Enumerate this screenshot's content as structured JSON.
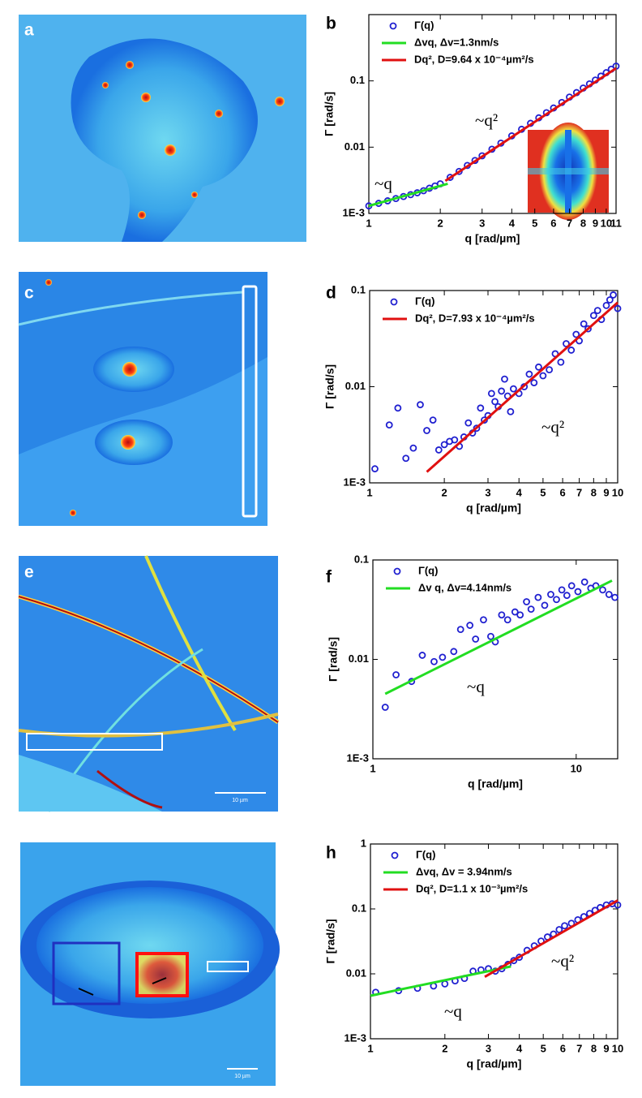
{
  "image_panels": [
    {
      "label": "a"
    },
    {
      "label": "c"
    },
    {
      "label": "e",
      "scale_bar": "10 µm"
    },
    {
      "scale_bar": "10 µm"
    }
  ],
  "chart_data": [
    {
      "type": "scatter",
      "panel_label": "b",
      "xlabel": "q [rad/µm]",
      "ylabel": "Γ [rad/s]",
      "xlog": true,
      "ylog": true,
      "legend": "upper left",
      "xlim": [
        1,
        11
      ],
      "ylim": [
        0.001,
        1
      ],
      "xticks": [
        1,
        2,
        3,
        4,
        5,
        6,
        7,
        8,
        9,
        10,
        11
      ],
      "yticks": [
        {
          "value": 0.001,
          "label": "1E-3"
        },
        0.01,
        0.1
      ],
      "annotations": [
        "~q",
        "~q²"
      ],
      "series": [
        {
          "name": "Γ(q)",
          "style": "markers",
          "color": "#2020d0",
          "x": [
            1,
            1.1,
            1.2,
            1.3,
            1.4,
            1.5,
            1.6,
            1.7,
            1.8,
            1.9,
            2.0,
            2.2,
            2.4,
            2.6,
            2.8,
            3,
            3.3,
            3.6,
            4,
            4.4,
            4.8,
            5.2,
            5.6,
            6,
            6.5,
            7,
            7.5,
            8,
            8.5,
            9,
            9.5,
            10,
            10.5,
            11
          ],
          "values": [
            0.0013,
            0.00142,
            0.00155,
            0.00168,
            0.0018,
            0.00192,
            0.00205,
            0.0022,
            0.0024,
            0.0026,
            0.0028,
            0.0035,
            0.0043,
            0.0053,
            0.0063,
            0.0074,
            0.0093,
            0.0115,
            0.0148,
            0.0186,
            0.0229,
            0.0277,
            0.0331,
            0.039,
            0.0473,
            0.057,
            0.0666,
            0.078,
            0.09,
            0.103,
            0.118,
            0.133,
            0.15,
            0.167
          ]
        },
        {
          "name": "Δvq, Δv=1.3nm/s",
          "style": "line",
          "color": "#22dd22",
          "x": [
            1,
            2.15
          ],
          "values": [
            0.0013,
            0.0028
          ]
        },
        {
          "name": "Dq², D=9.64 x 10⁻⁴µm²/s",
          "style": "line",
          "color": "#e01010",
          "x": [
            2.1,
            11
          ],
          "values": [
            0.0031,
            0.155
          ]
        }
      ]
    },
    {
      "type": "scatter",
      "panel_label": "d",
      "xlabel": "q [rad/µm]",
      "ylabel": "Γ [rad/s]",
      "xlog": true,
      "ylog": true,
      "legend": "upper left",
      "xlim": [
        1,
        10
      ],
      "ylim": [
        0.001,
        0.1
      ],
      "xticks": [
        1,
        2,
        3,
        4,
        5,
        6,
        7,
        8,
        9,
        10
      ],
      "yticks": [
        {
          "value": 0.001,
          "label": "1E-3"
        },
        0.01,
        0.1
      ],
      "annotations": [
        "~q²"
      ],
      "series": [
        {
          "name": "Γ(q)",
          "style": "markers",
          "color": "#2020d0",
          "x": [
            1.05,
            1.2,
            1.3,
            1.4,
            1.5,
            1.6,
            1.7,
            1.8,
            1.9,
            2.0,
            2.1,
            2.2,
            2.3,
            2.4,
            2.5,
            2.6,
            2.7,
            2.8,
            2.9,
            3.0,
            3.1,
            3.2,
            3.3,
            3.4,
            3.5,
            3.6,
            3.7,
            3.8,
            4.0,
            4.2,
            4.4,
            4.6,
            4.8,
            5.0,
            5.3,
            5.6,
            5.9,
            6.2,
            6.5,
            6.8,
            7.0,
            7.3,
            7.6,
            8.0,
            8.3,
            8.6,
            9.0,
            9.3,
            9.6,
            10
          ],
          "values": [
            0.0014,
            0.004,
            0.006,
            0.0018,
            0.0023,
            0.0065,
            0.0035,
            0.0045,
            0.0022,
            0.0025,
            0.0027,
            0.0028,
            0.0024,
            0.003,
            0.0042,
            0.0033,
            0.0037,
            0.006,
            0.0045,
            0.005,
            0.0085,
            0.007,
            0.0062,
            0.009,
            0.012,
            0.008,
            0.0055,
            0.0095,
            0.0085,
            0.01,
            0.0135,
            0.011,
            0.016,
            0.013,
            0.015,
            0.022,
            0.018,
            0.028,
            0.024,
            0.035,
            0.03,
            0.045,
            0.04,
            0.055,
            0.062,
            0.05,
            0.07,
            0.08,
            0.09,
            0.065
          ]
        },
        {
          "name": "Dq², D=7.93 x 10⁻⁴µm²/s",
          "style": "line",
          "color": "#e01010",
          "x": [
            1.7,
            10
          ],
          "values": [
            0.0013,
            0.075
          ]
        }
      ]
    },
    {
      "type": "scatter",
      "panel_label": "f",
      "xlabel": "q [rad/µm]",
      "ylabel": "Γ [rad/s]",
      "xlog": true,
      "ylog": true,
      "legend": "upper left",
      "xlim": [
        1,
        16
      ],
      "ylim": [
        0.001,
        0.1
      ],
      "xticks": [
        1,
        10
      ],
      "yticks": [
        {
          "value": 0.001,
          "label": "1E-3"
        },
        0.01,
        0.1
      ],
      "annotations": [
        "~q"
      ],
      "series": [
        {
          "name": "Γ(q)",
          "style": "markers",
          "color": "#2020d0",
          "x": [
            1.15,
            1.3,
            1.55,
            1.75,
            2.0,
            2.2,
            2.5,
            2.7,
            3.0,
            3.2,
            3.5,
            3.8,
            4.0,
            4.3,
            4.6,
            5.0,
            5.3,
            5.7,
            6.0,
            6.5,
            7.0,
            7.5,
            8.0,
            8.5,
            9.0,
            9.5,
            10.2,
            11,
            11.8,
            12.5,
            13.5,
            14.5,
            15.5
          ],
          "values": [
            0.0033,
            0.007,
            0.006,
            0.011,
            0.0095,
            0.0105,
            0.012,
            0.02,
            0.022,
            0.016,
            0.025,
            0.017,
            0.015,
            0.028,
            0.025,
            0.03,
            0.028,
            0.038,
            0.032,
            0.042,
            0.035,
            0.045,
            0.04,
            0.05,
            0.044,
            0.055,
            0.048,
            0.06,
            0.052,
            0.055,
            0.05,
            0.045,
            0.042
          ]
        },
        {
          "name": "Δv q, Δv=4.14nm/s",
          "style": "line",
          "color": "#22dd22",
          "x": [
            1.15,
            15
          ],
          "values": [
            0.0045,
            0.062
          ]
        }
      ]
    },
    {
      "type": "scatter",
      "panel_label": "h",
      "xlabel": "q [rad/µm]",
      "ylabel": "Γ [rad/s]",
      "xlog": true,
      "ylog": true,
      "legend": "upper left",
      "xlim": [
        1,
        10
      ],
      "ylim": [
        0.001,
        1
      ],
      "xticks": [
        1,
        2,
        3,
        4,
        5,
        6,
        7,
        8,
        9,
        10
      ],
      "yticks": [
        {
          "value": 0.001,
          "label": "1E-3"
        },
        0.01,
        0.1,
        1
      ],
      "annotations": [
        "~q",
        "~q²"
      ],
      "series": [
        {
          "name": "Γ(q)",
          "style": "markers",
          "color": "#2020d0",
          "x": [
            1.05,
            1.3,
            1.55,
            1.8,
            2.0,
            2.2,
            2.4,
            2.6,
            2.8,
            3.0,
            3.2,
            3.4,
            3.6,
            3.8,
            4.0,
            4.3,
            4.6,
            4.9,
            5.2,
            5.5,
            5.8,
            6.1,
            6.5,
            6.9,
            7.3,
            7.7,
            8.1,
            8.5,
            9.0,
            9.5,
            10
          ],
          "values": [
            0.0052,
            0.0055,
            0.006,
            0.0065,
            0.007,
            0.0078,
            0.0085,
            0.011,
            0.0115,
            0.012,
            0.011,
            0.012,
            0.014,
            0.016,
            0.018,
            0.023,
            0.027,
            0.032,
            0.037,
            0.041,
            0.048,
            0.055,
            0.06,
            0.068,
            0.076,
            0.085,
            0.095,
            0.105,
            0.115,
            0.12,
            0.115
          ]
        },
        {
          "name": "Δvq, Δv = 3.94nm/s",
          "style": "line",
          "color": "#22dd22",
          "x": [
            1,
            3.7
          ],
          "values": [
            0.0046,
            0.013
          ]
        },
        {
          "name": "Dq², D=1.1 x 10⁻³µm²/s",
          "style": "line",
          "color": "#e01010",
          "x": [
            2.9,
            10
          ],
          "values": [
            0.009,
            0.135
          ]
        }
      ]
    }
  ]
}
